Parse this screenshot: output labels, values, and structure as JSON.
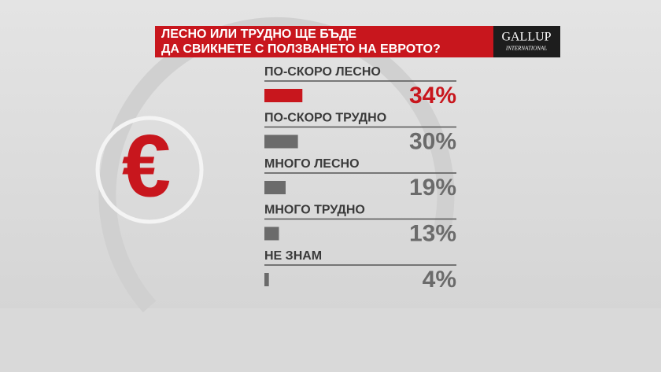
{
  "chart_data": {
    "type": "bar",
    "title": [
      "ЛЕСНО ИЛИ ТРУДНО ЩЕ БЪДЕ",
      "ДА СВИКНЕТЕ С ПОЛЗВАНЕТО НА ЕВРОТО?"
    ],
    "logo": [
      "GALLUP",
      "INTERNATIONAL"
    ],
    "categories": [
      "ПО-СКОРО ЛЕСНО",
      "ПО-СКОРО ТРУДНО",
      "МНОГО ЛЕСНО",
      "МНОГО ТРУДНО",
      "НЕ ЗНАМ"
    ],
    "values": [
      34,
      30,
      19,
      13,
      4
    ],
    "value_labels": [
      "34%",
      "30%",
      "19%",
      "13%",
      "4%"
    ],
    "colors": [
      "#c8161d",
      "#6b6b6b",
      "#6b6b6b",
      "#6b6b6b",
      "#6b6b6b"
    ],
    "symbol": "€"
  }
}
